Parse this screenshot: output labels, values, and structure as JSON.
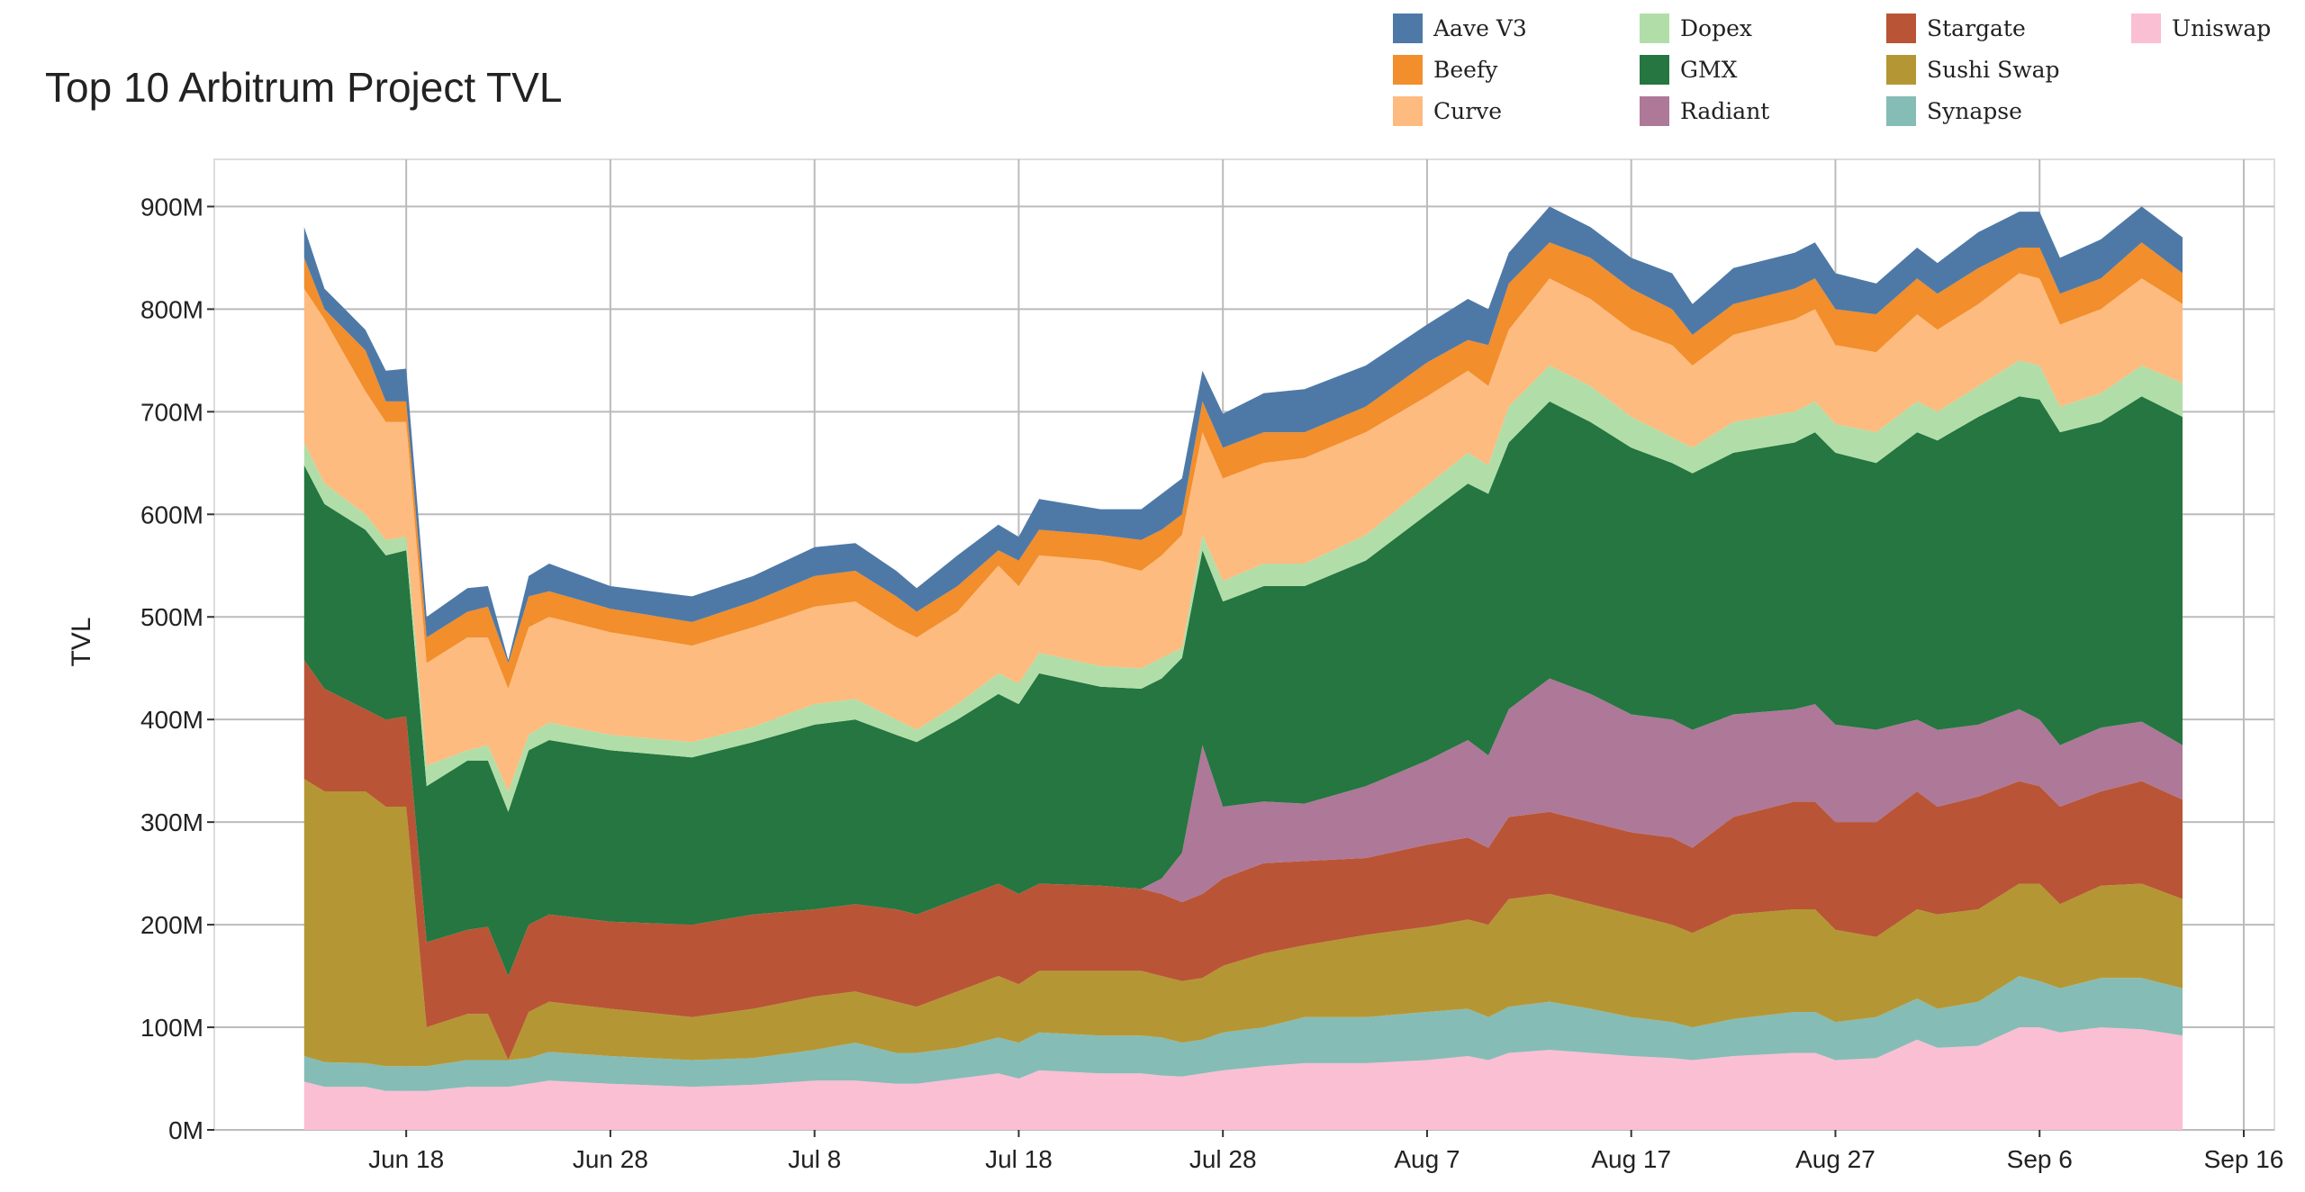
{
  "chart_data": {
    "type": "area",
    "stacked": true,
    "title": "Top 10 Arbitrum Project TVL",
    "xlabel": "",
    "ylabel": "TVL",
    "x_unit": "days relative to Jun 18",
    "xlim": [
      -9.4,
      91.5
    ],
    "ylim": [
      0,
      946
    ],
    "y_unit": "M (USD)",
    "grid": true,
    "legend_position": "top-right",
    "x_ticks": [
      {
        "value": 0,
        "label": "Jun 18"
      },
      {
        "value": 10,
        "label": "Jun 28"
      },
      {
        "value": 20,
        "label": "Jul 8"
      },
      {
        "value": 30,
        "label": "Jul 18"
      },
      {
        "value": 40,
        "label": "Jul 28"
      },
      {
        "value": 50,
        "label": "Aug 7"
      },
      {
        "value": 60,
        "label": "Aug 17"
      },
      {
        "value": 70,
        "label": "Aug 27"
      },
      {
        "value": 80,
        "label": "Sep 6"
      },
      {
        "value": 90,
        "label": "Sep 16"
      }
    ],
    "y_ticks": [
      {
        "value": 0,
        "label": "0M"
      },
      {
        "value": 100,
        "label": "100M"
      },
      {
        "value": 200,
        "label": "200M"
      },
      {
        "value": 300,
        "label": "300M"
      },
      {
        "value": 400,
        "label": "400M"
      },
      {
        "value": 500,
        "label": "500M"
      },
      {
        "value": 600,
        "label": "600M"
      },
      {
        "value": 700,
        "label": "700M"
      },
      {
        "value": 800,
        "label": "800M"
      },
      {
        "value": 900,
        "label": "900M"
      }
    ],
    "x": [
      -5,
      -4,
      -2,
      -1,
      0,
      1,
      3,
      4,
      5,
      6,
      7,
      10,
      14,
      17,
      20,
      22,
      24,
      25,
      27,
      29,
      30,
      31,
      34,
      36,
      37,
      38,
      39,
      40,
      42,
      44,
      47,
      50,
      52,
      53,
      54,
      56,
      58,
      60,
      62,
      63,
      65,
      68,
      69,
      70,
      72,
      74,
      75,
      77,
      79,
      80,
      81,
      83,
      85,
      87
    ],
    "series": [
      {
        "name": "Uniswap",
        "color": "#fabfd2",
        "values": [
          47,
          42,
          42,
          38,
          38,
          38,
          42,
          42,
          42,
          45,
          48,
          45,
          42,
          44,
          48,
          48,
          45,
          45,
          50,
          55,
          50,
          58,
          55,
          55,
          53,
          52,
          55,
          58,
          62,
          65,
          65,
          68,
          72,
          68,
          75,
          78,
          75,
          72,
          70,
          68,
          72,
          75,
          75,
          68,
          70,
          88,
          80,
          82,
          100,
          100,
          95,
          100,
          98,
          92
        ]
      },
      {
        "name": "Synapse",
        "color": "#86bcb6",
        "values": [
          25,
          24,
          23,
          24,
          24,
          24,
          26,
          26,
          26,
          25,
          28,
          27,
          26,
          26,
          30,
          37,
          30,
          30,
          30,
          35,
          35,
          37,
          37,
          37,
          37,
          33,
          33,
          37,
          38,
          45,
          45,
          47,
          46,
          42,
          45,
          47,
          43,
          38,
          35,
          32,
          36,
          40,
          40,
          37,
          40,
          40,
          38,
          43,
          50,
          45,
          43,
          48,
          50,
          46
        ]
      },
      {
        "name": "Sushi Swap",
        "color": "#b49734",
        "values": [
          270,
          264,
          265,
          253,
          253,
          38,
          45,
          45,
          0,
          45,
          49,
          46,
          42,
          48,
          52,
          50,
          50,
          45,
          55,
          60,
          57,
          60,
          63,
          63,
          60,
          60,
          60,
          65,
          72,
          70,
          80,
          83,
          87,
          90,
          105,
          105,
          102,
          100,
          95,
          92,
          102,
          100,
          100,
          90,
          78,
          87,
          92,
          90,
          90,
          95,
          82,
          90,
          92,
          87
        ]
      },
      {
        "name": "Stargate",
        "color": "#b95536",
        "values": [
          116,
          100,
          80,
          85,
          88,
          83,
          82,
          85,
          82,
          85,
          85,
          85,
          90,
          92,
          85,
          85,
          90,
          90,
          90,
          90,
          88,
          85,
          83,
          80,
          80,
          77,
          82,
          85,
          88,
          82,
          75,
          80,
          80,
          75,
          80,
          80,
          80,
          80,
          85,
          83,
          95,
          105,
          105,
          105,
          112,
          115,
          105,
          110,
          100,
          95,
          95,
          92,
          100,
          97
        ]
      },
      {
        "name": "Radiant",
        "color": "#ae7898",
        "values": [
          0,
          0,
          0,
          0,
          0,
          0,
          0,
          0,
          0,
          0,
          0,
          0,
          0,
          0,
          0,
          0,
          0,
          0,
          0,
          0,
          0,
          0,
          0,
          0,
          15,
          48,
          145,
          70,
          60,
          56,
          70,
          82,
          95,
          90,
          105,
          130,
          125,
          115,
          115,
          115,
          100,
          90,
          95,
          95,
          90,
          70,
          75,
          70,
          70,
          65,
          60,
          62,
          58,
          53
        ]
      },
      {
        "name": "GMX",
        "color": "#257640",
        "values": [
          190,
          180,
          175,
          160,
          162,
          152,
          165,
          162,
          160,
          170,
          170,
          167,
          163,
          168,
          180,
          180,
          170,
          168,
          175,
          185,
          185,
          205,
          194,
          195,
          195,
          190,
          190,
          200,
          210,
          212,
          220,
          240,
          250,
          255,
          260,
          270,
          265,
          260,
          250,
          250,
          255,
          260,
          265,
          265,
          260,
          280,
          282,
          300,
          305,
          312,
          305,
          298,
          317,
          320
        ]
      },
      {
        "name": "Dopex",
        "color": "#b1dea8",
        "values": [
          22,
          20,
          15,
          15,
          13,
          20,
          10,
          15,
          20,
          15,
          17,
          15,
          15,
          15,
          20,
          20,
          15,
          12,
          15,
          20,
          20,
          20,
          20,
          20,
          20,
          10,
          15,
          20,
          22,
          22,
          25,
          28,
          30,
          28,
          35,
          35,
          35,
          30,
          25,
          25,
          30,
          30,
          30,
          28,
          30,
          30,
          28,
          30,
          35,
          33,
          25,
          28,
          30,
          33
        ]
      },
      {
        "name": "Curve",
        "color": "#fdbb7f",
        "values": [
          150,
          160,
          120,
          115,
          112,
          100,
          110,
          105,
          100,
          105,
          103,
          100,
          94,
          97,
          95,
          95,
          90,
          90,
          90,
          105,
          95,
          95,
          103,
          95,
          100,
          110,
          100,
          100,
          98,
          103,
          100,
          87,
          80,
          77,
          75,
          85,
          85,
          85,
          90,
          80,
          85,
          90,
          90,
          77,
          78,
          85,
          80,
          80,
          85,
          85,
          80,
          82,
          85,
          77
        ]
      },
      {
        "name": "Beefy",
        "color": "#f28e2b",
        "values": [
          30,
          10,
          40,
          20,
          20,
          25,
          25,
          30,
          25,
          30,
          25,
          23,
          23,
          25,
          30,
          30,
          30,
          25,
          25,
          15,
          25,
          25,
          25,
          30,
          25,
          20,
          30,
          30,
          30,
          25,
          25,
          33,
          30,
          40,
          45,
          35,
          40,
          40,
          35,
          30,
          30,
          30,
          30,
          35,
          37,
          35,
          35,
          35,
          25,
          30,
          30,
          30,
          35,
          30
        ]
      },
      {
        "name": "Aave V3",
        "color": "#4e79a7",
        "values": [
          30,
          20,
          20,
          30,
          32,
          20,
          23,
          20,
          3,
          20,
          27,
          22,
          25,
          25,
          28,
          27,
          25,
          23,
          30,
          25,
          23,
          30,
          25,
          30,
          35,
          35,
          30,
          33,
          38,
          42,
          40,
          37,
          40,
          35,
          30,
          35,
          30,
          30,
          35,
          30,
          35,
          35,
          35,
          35,
          30,
          30,
          30,
          35,
          35,
          35,
          35,
          38,
          35,
          35
        ]
      }
    ],
    "legend_order": [
      "Aave V3",
      "Beefy",
      "Curve",
      "Dopex",
      "GMX",
      "Radiant",
      "Stargate",
      "Sushi Swap",
      "Synapse",
      "Uniswap"
    ]
  }
}
